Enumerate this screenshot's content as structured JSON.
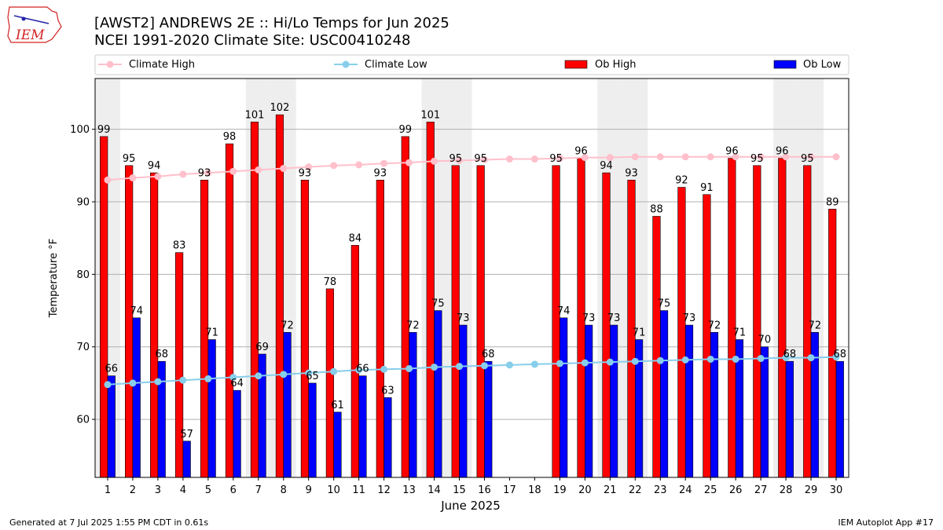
{
  "header": {
    "title_line1": "[AWST2] ANDREWS 2E :: Hi/Lo Temps for Jun 2025",
    "title_line2": "NCEI 1991-2020 Climate Site: USC00410248",
    "logo_text": "IEM"
  },
  "footer": {
    "generated": "Generated at 7 Jul 2025 1:55 PM CDT in 0.61s",
    "app": "IEM Autoplot App #17"
  },
  "colors": {
    "ob_high": "#ff0000",
    "ob_low": "#0000ff",
    "climate_high": "#ffc0cb",
    "climate_low": "#87ceeb",
    "weekend_shade": "#eeeeee",
    "grid": "#b0b0b0"
  },
  "chart_data": {
    "type": "bar",
    "xlabel": "June 2025",
    "ylabel": "Temperature °F",
    "ylim": [
      52,
      107
    ],
    "yticks": [
      60,
      70,
      80,
      90,
      100
    ],
    "grid": "horizontal",
    "legend_position": "top",
    "categories": [
      "1",
      "2",
      "3",
      "4",
      "5",
      "6",
      "7",
      "8",
      "9",
      "10",
      "11",
      "12",
      "13",
      "14",
      "15",
      "16",
      "17",
      "18",
      "19",
      "20",
      "21",
      "22",
      "23",
      "24",
      "25",
      "26",
      "27",
      "28",
      "29",
      "30"
    ],
    "weekend_days": [
      1,
      7,
      8,
      14,
      15,
      21,
      22,
      28,
      29
    ],
    "series": [
      {
        "name": "Ob High",
        "kind": "bar",
        "values": [
          99,
          95,
          94,
          83,
          93,
          98,
          101,
          102,
          93,
          78,
          84,
          93,
          99,
          101,
          95,
          95,
          null,
          null,
          95,
          96,
          94,
          93,
          88,
          92,
          91,
          96,
          95,
          96,
          95,
          89
        ]
      },
      {
        "name": "Ob Low",
        "kind": "bar",
        "values": [
          66,
          74,
          68,
          57,
          71,
          64,
          69,
          72,
          65,
          61,
          66,
          63,
          72,
          75,
          73,
          68,
          null,
          null,
          74,
          73,
          73,
          71,
          75,
          73,
          72,
          71,
          70,
          68,
          72,
          68
        ]
      },
      {
        "name": "Climate High",
        "kind": "line",
        "values": [
          93,
          93.3,
          93.5,
          93.8,
          94,
          94.2,
          94.4,
          94.6,
          94.8,
          95,
          95.1,
          95.3,
          95.4,
          95.6,
          95.7,
          95.8,
          95.9,
          95.9,
          96,
          96.1,
          96.1,
          96.2,
          96.2,
          96.2,
          96.2,
          96.2,
          96.2,
          96.2,
          96.2,
          96.2
        ]
      },
      {
        "name": "Climate Low",
        "kind": "line",
        "values": [
          64.8,
          65,
          65.2,
          65.4,
          65.6,
          65.8,
          66,
          66.2,
          66.4,
          66.6,
          66.8,
          66.9,
          67,
          67.2,
          67.3,
          67.4,
          67.5,
          67.6,
          67.7,
          67.8,
          67.9,
          68,
          68.1,
          68.2,
          68.3,
          68.3,
          68.4,
          68.5,
          68.5,
          68.6
        ]
      }
    ]
  }
}
